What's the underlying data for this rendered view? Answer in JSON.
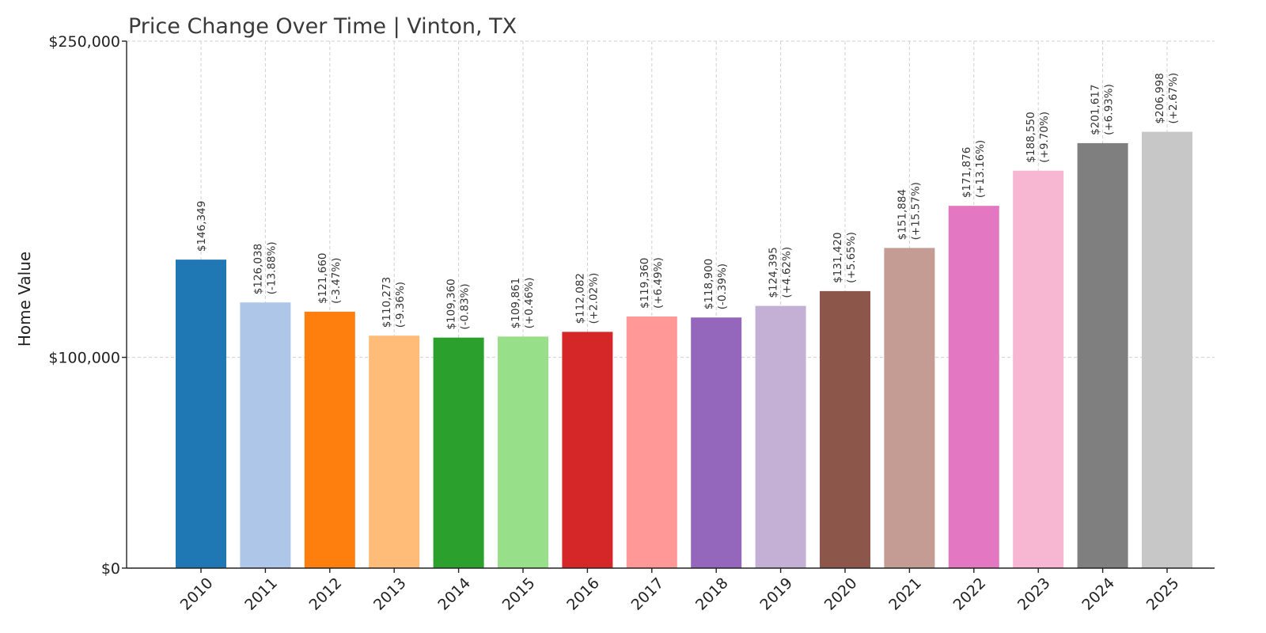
{
  "chart_data": {
    "type": "bar",
    "title": "Price Change Over Time | Vinton, TX",
    "xlabel": "",
    "ylabel": "Home Value",
    "ylim": [
      0,
      250000
    ],
    "yticks": [
      0,
      100000,
      250000
    ],
    "ytick_labels": [
      "$0",
      "$100,000",
      "$250,000"
    ],
    "grid": true,
    "categories": [
      "2010",
      "2011",
      "2012",
      "2013",
      "2014",
      "2015",
      "2016",
      "2017",
      "2018",
      "2019",
      "2020",
      "2021",
      "2022",
      "2023",
      "2024",
      "2025"
    ],
    "values": [
      146349,
      126038,
      121660,
      110273,
      109360,
      109861,
      112082,
      119360,
      118900,
      124395,
      131420,
      151884,
      171876,
      188550,
      201617,
      206998
    ],
    "value_labels": [
      "$146,349",
      "$126,038",
      "$121,660",
      "$110,273",
      "$109,360",
      "$109,861",
      "$112,082",
      "$119,360",
      "$118,900",
      "$124,395",
      "$131,420",
      "$151,884",
      "$171,876",
      "$188,550",
      "$201,617",
      "$206,998"
    ],
    "change_labels": [
      "",
      "(-13.88%)",
      "(-3.47%)",
      "(-9.36%)",
      "(-0.83%)",
      "(+0.46%)",
      "(+2.02%)",
      "(+6.49%)",
      "(-0.39%)",
      "(+4.62%)",
      "(+5.65%)",
      "(+15.57%)",
      "(+13.16%)",
      "(+9.70%)",
      "(+6.93%)",
      "(+2.67%)"
    ],
    "colors": [
      "#1f77b4",
      "#aec7e8",
      "#ff7f0e",
      "#ffbb78",
      "#2ca02c",
      "#98df8a",
      "#d62728",
      "#ff9896",
      "#9467bd",
      "#c5b0d5",
      "#8c564b",
      "#c49c94",
      "#e377c2",
      "#f7b6d2",
      "#7f7f7f",
      "#c7c7c7"
    ]
  }
}
